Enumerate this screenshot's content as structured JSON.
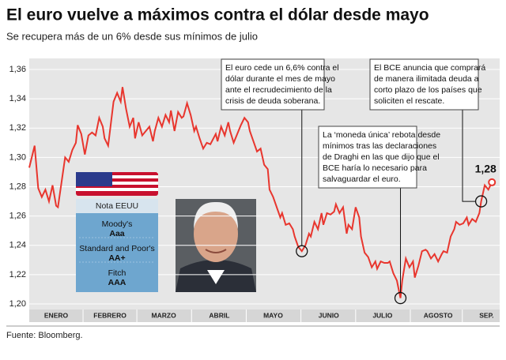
{
  "chart_data": {
    "type": "line",
    "title": "El euro vuelve a máximos contra el dólar desde mayo",
    "subtitle": "Se recupera más de un 6% desde sus mínimos de julio",
    "source": "Fuente: Bloomberg.",
    "xlim": [
      0,
      261
    ],
    "xticks": [
      {
        "value": 15,
        "label": "ENERO"
      },
      {
        "value": 45,
        "label": "FEBRERO"
      },
      {
        "value": 75,
        "label": "MARZO"
      },
      {
        "value": 106,
        "label": "ABRIL"
      },
      {
        "value": 136,
        "label": "MAYO"
      },
      {
        "value": 167,
        "label": "JUNIO"
      },
      {
        "value": 197,
        "label": "JULIO"
      },
      {
        "value": 228,
        "label": "AGOSTO"
      },
      {
        "value": 255,
        "label": "SEP."
      }
    ],
    "ylim": [
      1.2,
      1.36
    ],
    "yticks": [
      {
        "value": 1.2,
        "label": "1,20"
      },
      {
        "value": 1.22,
        "label": "1,22"
      },
      {
        "value": 1.24,
        "label": "1,24"
      },
      {
        "value": 1.26,
        "label": "1,26"
      },
      {
        "value": 1.28,
        "label": "1,28"
      },
      {
        "value": 1.3,
        "label": "1,30"
      },
      {
        "value": 1.32,
        "label": "1,32"
      },
      {
        "value": 1.34,
        "label": "1,34"
      },
      {
        "value": 1.36,
        "label": "1,36"
      }
    ],
    "grid": true,
    "x": [
      0,
      3,
      5,
      7,
      9,
      11,
      13,
      15,
      16,
      18,
      20,
      22,
      24,
      26,
      27,
      29,
      31,
      33,
      35,
      37,
      39,
      41,
      42,
      44,
      45,
      47,
      49,
      51,
      52,
      54,
      56,
      58,
      59,
      61,
      63,
      65,
      67,
      69,
      70,
      72,
      74,
      76,
      78,
      79,
      81,
      83,
      85,
      86,
      88,
      90,
      92,
      93,
      95,
      97,
      99,
      101,
      104,
      105,
      107,
      109,
      111,
      112,
      114,
      116,
      118,
      120,
      122,
      123,
      125,
      127,
      129,
      131,
      133,
      134,
      136,
      138,
      140,
      141,
      143,
      145,
      147,
      148,
      150,
      152,
      154,
      156,
      157,
      159,
      161,
      163,
      164,
      166,
      168,
      170,
      171,
      173,
      175,
      177,
      178,
      180,
      182,
      184,
      185,
      187,
      189,
      191,
      193,
      194,
      196,
      198,
      200,
      201,
      203,
      205,
      207,
      208,
      210,
      212,
      214,
      215,
      217,
      219,
      221,
      222,
      224,
      226,
      228,
      230,
      231,
      233,
      235,
      237,
      238,
      240,
      242,
      244,
      245,
      247,
      249,
      251,
      252,
      254,
      256,
      258
    ],
    "series": [
      {
        "color": "#e8362e",
        "values": [
          1.293,
          1.308,
          1.279,
          1.273,
          1.278,
          1.27,
          1.281,
          1.267,
          1.266,
          1.283,
          1.3,
          1.297,
          1.305,
          1.31,
          1.322,
          1.316,
          1.302,
          1.315,
          1.317,
          1.315,
          1.327,
          1.321,
          1.313,
          1.308,
          1.318,
          1.338,
          1.344,
          1.338,
          1.348,
          1.333,
          1.321,
          1.327,
          1.313,
          1.324,
          1.315,
          1.318,
          1.321,
          1.311,
          1.318,
          1.327,
          1.321,
          1.329,
          1.324,
          1.332,
          1.318,
          1.331,
          1.327,
          1.328,
          1.337,
          1.329,
          1.318,
          1.321,
          1.313,
          1.306,
          1.31,
          1.309,
          1.316,
          1.311,
          1.321,
          1.315,
          1.324,
          1.318,
          1.31,
          1.316,
          1.322,
          1.327,
          1.324,
          1.318,
          1.311,
          1.304,
          1.306,
          1.295,
          1.292,
          1.278,
          1.273,
          1.266,
          1.259,
          1.262,
          1.254,
          1.255,
          1.251,
          1.246,
          1.239,
          1.236,
          1.24,
          1.248,
          1.246,
          1.256,
          1.251,
          1.262,
          1.254,
          1.262,
          1.261,
          1.263,
          1.268,
          1.262,
          1.266,
          1.248,
          1.254,
          1.251,
          1.266,
          1.259,
          1.246,
          1.235,
          1.232,
          1.225,
          1.229,
          1.224,
          1.229,
          1.228,
          1.228,
          1.229,
          1.221,
          1.216,
          1.204,
          1.216,
          1.231,
          1.225,
          1.229,
          1.218,
          1.226,
          1.236,
          1.237,
          1.236,
          1.231,
          1.234,
          1.229,
          1.234,
          1.236,
          1.235,
          1.246,
          1.251,
          1.256,
          1.254,
          1.255,
          1.259,
          1.254,
          1.258,
          1.256,
          1.262,
          1.27,
          1.281,
          1.278,
          1.283
        ]
      }
    ],
    "end_label": "1,28",
    "annotations": [
      {
        "lines": [
          "El euro cede un 6,6% contra el",
          "dólar durante el mes de mayo",
          "ante el recrudecimiento de la",
          "crisis de deuda soberana."
        ]
      },
      {
        "lines": [
          "La ‘moneda única’ rebota desde",
          "mínimos tras las declaraciones",
          "de Draghi en las que dijo que el",
          "BCE haría lo necesario para",
          "salvaguardar el euro."
        ]
      },
      {
        "lines": [
          "El BCE anuncia que comprará",
          "de manera ilimitada deuda a",
          "corto plazo de los países que",
          "soliciten el rescate."
        ]
      }
    ],
    "ratings": {
      "header": "Nota EEUU",
      "agencies": [
        {
          "name": "Moody's",
          "rating": "Aaa"
        },
        {
          "name": "Standard and Poor's",
          "rating": "AA+"
        },
        {
          "name": "Fitch",
          "rating": "AAA"
        }
      ]
    }
  }
}
